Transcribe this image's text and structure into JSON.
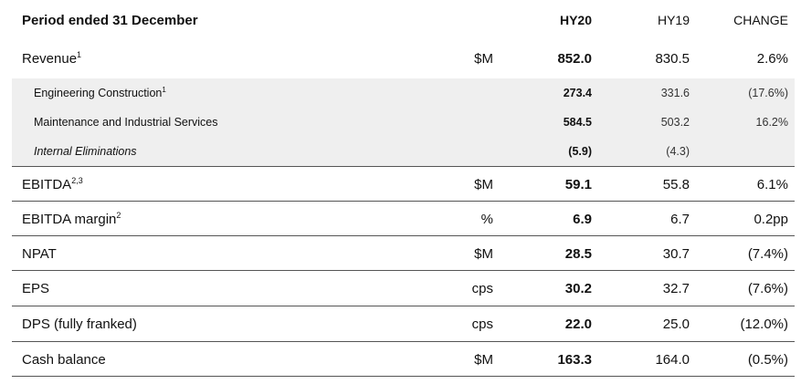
{
  "header": {
    "title": "Period ended 31 December",
    "col_hy20": "HY20",
    "col_hy19": "HY19",
    "col_change": "CHANGE"
  },
  "revenue": {
    "label": "Revenue",
    "sup": "1",
    "unit": "$M",
    "hy20": "852.0",
    "hy19": "830.5",
    "change": "2.6%"
  },
  "segments": [
    {
      "label": "Engineering Construction",
      "sup": "1",
      "hy20": "273.4",
      "hy19": "331.6",
      "change": "(17.6%)"
    },
    {
      "label": "Maintenance and Industrial Services",
      "sup": "",
      "hy20": "584.5",
      "hy19": "503.2",
      "change": "16.2%"
    },
    {
      "label": "Internal Eliminations",
      "sup": "",
      "hy20": "(5.9)",
      "hy19": "(4.3)",
      "change": ""
    }
  ],
  "metrics": [
    {
      "label": "EBITDA",
      "sup": "2,3",
      "unit": "$M",
      "hy20": "59.1",
      "hy19": "55.8",
      "change": "6.1%"
    },
    {
      "label": "EBITDA margin",
      "sup": "2",
      "unit": "%",
      "hy20": "6.9",
      "hy19": "6.7",
      "change": "0.2pp"
    },
    {
      "label": "NPAT",
      "sup": "",
      "unit": "$M",
      "hy20": "28.5",
      "hy19": "30.7",
      "change": "(7.4%)"
    },
    {
      "label": "EPS",
      "sup": "",
      "unit": "cps",
      "hy20": "30.2",
      "hy19": "32.7",
      "change": "(7.6%)"
    },
    {
      "label": "DPS (fully franked)",
      "sup": "",
      "unit": "cps",
      "hy20": "22.0",
      "hy19": "25.0",
      "change": "(12.0%)"
    },
    {
      "label": "Cash balance",
      "sup": "",
      "unit": "$M",
      "hy20": "163.3",
      "hy19": "164.0",
      "change": "(0.5%)"
    }
  ]
}
